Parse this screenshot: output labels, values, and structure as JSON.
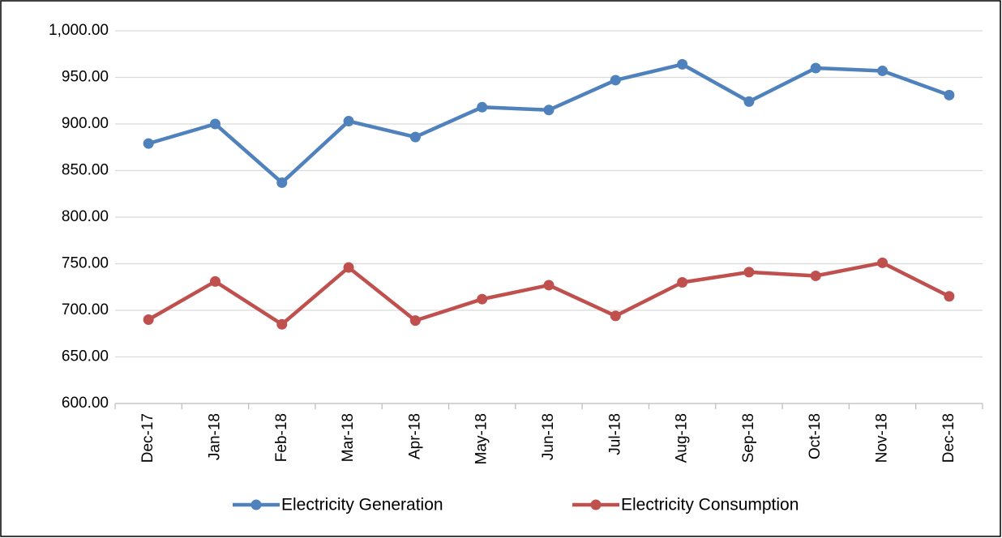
{
  "chart_data": {
    "type": "line",
    "categories": [
      "Dec-17",
      "Jan-18",
      "Feb-18",
      "Mar-18",
      "Apr-18",
      "May-18",
      "Jun-18",
      "Jul-18",
      "Aug-18",
      "Sep-18",
      "Oct-18",
      "Nov-18",
      "Dec-18"
    ],
    "series": [
      {
        "name": "Electricity Generation",
        "color": "#4f81bd",
        "values": [
          879,
          900,
          837,
          903,
          886,
          918,
          915,
          947,
          964,
          924,
          960,
          957,
          931
        ]
      },
      {
        "name": "Electricity Consumption",
        "color": "#c0504d",
        "values": [
          690,
          731,
          685,
          746,
          689,
          712,
          727,
          694,
          730,
          741,
          737,
          751,
          715
        ]
      }
    ],
    "ylim": [
      600,
      1000
    ],
    "yticks": [
      {
        "value": 600,
        "label": "600.00"
      },
      {
        "value": 650,
        "label": "650.00"
      },
      {
        "value": 700,
        "label": "700.00"
      },
      {
        "value": 750,
        "label": "750.00"
      },
      {
        "value": 800,
        "label": "800.00"
      },
      {
        "value": 850,
        "label": "850.00"
      },
      {
        "value": 900,
        "label": "900.00"
      },
      {
        "value": 950,
        "label": "950.00"
      },
      {
        "value": 1000,
        "label": "1,000.00"
      }
    ],
    "grid": true,
    "legend": "bottom"
  }
}
